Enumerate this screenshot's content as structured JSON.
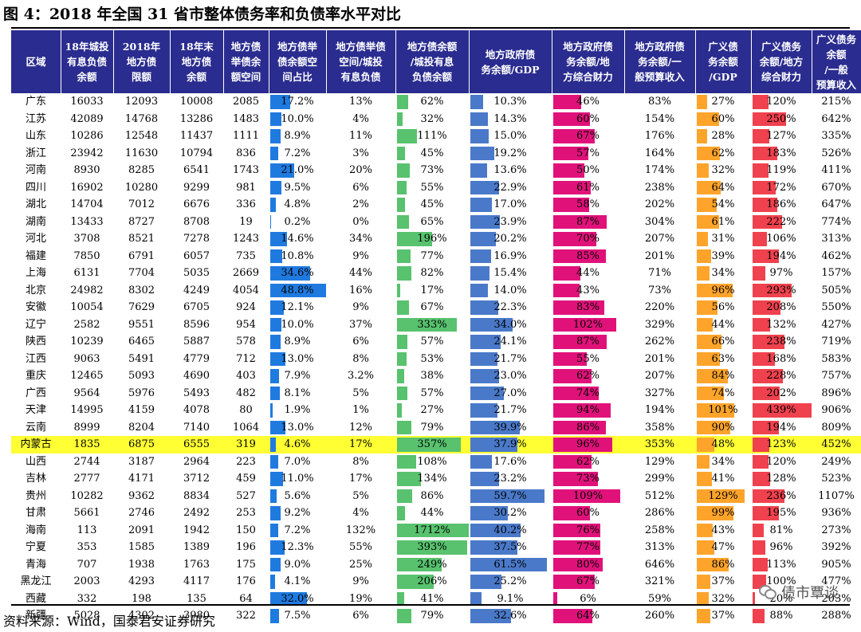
{
  "title": "图 4：2018 年全国 31 省市整体债务率和负债率水平对比",
  "source": "资料来源：Wind，国泰君安证券研究",
  "watermark": "债市覃谈",
  "colors": {
    "header_bg": "#2a2c8f",
    "highlight_row": "#ffff33",
    "bar_space_ratio": "#1f7ae0",
    "bar_debt_ratio": "#58c26e",
    "bar_gov_gdp": "#4a79c9",
    "bar_gov_fin": "#e0127a",
    "bar_broad_gdp": "#ffa42b",
    "bar_broad_fin": "#f0414e"
  },
  "table": {
    "headers": [
      "区域",
      "18年城投\n有息负债\n余额",
      "2018年\n地方债\n限额",
      "18年末\n地方债\n余额",
      "地方债\n举债余\n额空间",
      "地方债举\n债余额空\n间占比",
      "地方债举债\n空间/城投\n有息负债",
      "地方债余额\n/城投有息\n负债余额",
      "地方政府债\n务余额/GDP",
      "地方政府债\n务余额/地\n方综合财力",
      "地方政府债\n务余额/一\n般预算收入",
      "广义债\n务余额\n/GDP",
      "广义债务\n余额/地方\n综合财力",
      "广义债务余额\n/一般\n预算收入"
    ],
    "rows": [
      {
        "region": "广东",
        "c1": "16033",
        "c2": "12093",
        "c3": "10008",
        "c4": "2085",
        "space": "17.2%",
        "sp_city": "13%",
        "ratio": "62%",
        "gov_gdp": "10.3%",
        "gov_fin": "46%",
        "gov_rev": "83%",
        "bd_gdp": "27%",
        "bd_fin": "120%",
        "bd_rev": "215%",
        "space_v": 17.2,
        "ratio_v": 62,
        "gov_gdp_v": 10.3,
        "gov_fin_v": 46,
        "bd_gdp_v": 27,
        "bd_fin_v": 120
      },
      {
        "region": "江苏",
        "c1": "42089",
        "c2": "14768",
        "c3": "13286",
        "c4": "1483",
        "space": "10.0%",
        "sp_city": "4%",
        "ratio": "32%",
        "gov_gdp": "14.3%",
        "gov_fin": "60%",
        "gov_rev": "154%",
        "bd_gdp": "60%",
        "bd_fin": "250%",
        "bd_rev": "642%",
        "space_v": 10.0,
        "ratio_v": 32,
        "gov_gdp_v": 14.3,
        "gov_fin_v": 60,
        "bd_gdp_v": 60,
        "bd_fin_v": 250
      },
      {
        "region": "山东",
        "c1": "10286",
        "c2": "12548",
        "c3": "11437",
        "c4": "1111",
        "space": "8.9%",
        "sp_city": "11%",
        "ratio": "111%",
        "gov_gdp": "15.0%",
        "gov_fin": "67%",
        "gov_rev": "176%",
        "bd_gdp": "28%",
        "bd_fin": "127%",
        "bd_rev": "335%",
        "space_v": 8.9,
        "ratio_v": 111,
        "gov_gdp_v": 15.0,
        "gov_fin_v": 67,
        "bd_gdp_v": 28,
        "bd_fin_v": 127
      },
      {
        "region": "浙江",
        "c1": "23942",
        "c2": "11630",
        "c3": "10794",
        "c4": "836",
        "space": "7.2%",
        "sp_city": "3%",
        "ratio": "45%",
        "gov_gdp": "19.2%",
        "gov_fin": "57%",
        "gov_rev": "164%",
        "bd_gdp": "62%",
        "bd_fin": "183%",
        "bd_rev": "526%",
        "space_v": 7.2,
        "ratio_v": 45,
        "gov_gdp_v": 19.2,
        "gov_fin_v": 57,
        "bd_gdp_v": 62,
        "bd_fin_v": 183
      },
      {
        "region": "河南",
        "c1": "8930",
        "c2": "8285",
        "c3": "6541",
        "c4": "1743",
        "space": "21.0%",
        "sp_city": "20%",
        "ratio": "73%",
        "gov_gdp": "13.6%",
        "gov_fin": "50%",
        "gov_rev": "174%",
        "bd_gdp": "32%",
        "bd_fin": "119%",
        "bd_rev": "411%",
        "space_v": 21.0,
        "ratio_v": 73,
        "gov_gdp_v": 13.6,
        "gov_fin_v": 50,
        "bd_gdp_v": 32,
        "bd_fin_v": 119
      },
      {
        "region": "四川",
        "c1": "16902",
        "c2": "10280",
        "c3": "9299",
        "c4": "981",
        "space": "9.5%",
        "sp_city": "6%",
        "ratio": "55%",
        "gov_gdp": "22.9%",
        "gov_fin": "61%",
        "gov_rev": "238%",
        "bd_gdp": "64%",
        "bd_fin": "172%",
        "bd_rev": "670%",
        "space_v": 9.5,
        "ratio_v": 55,
        "gov_gdp_v": 22.9,
        "gov_fin_v": 61,
        "bd_gdp_v": 64,
        "bd_fin_v": 172
      },
      {
        "region": "湖北",
        "c1": "14704",
        "c2": "7012",
        "c3": "6676",
        "c4": "336",
        "space": "4.8%",
        "sp_city": "2%",
        "ratio": "45%",
        "gov_gdp": "17.0%",
        "gov_fin": "58%",
        "gov_rev": "202%",
        "bd_gdp": "54%",
        "bd_fin": "186%",
        "bd_rev": "647%",
        "space_v": 4.8,
        "ratio_v": 45,
        "gov_gdp_v": 17.0,
        "gov_fin_v": 58,
        "bd_gdp_v": 54,
        "bd_fin_v": 186
      },
      {
        "region": "湖南",
        "c1": "13433",
        "c2": "8727",
        "c3": "8708",
        "c4": "19",
        "space": "0.2%",
        "sp_city": "0%",
        "ratio": "65%",
        "gov_gdp": "23.9%",
        "gov_fin": "87%",
        "gov_rev": "304%",
        "bd_gdp": "61%",
        "bd_fin": "222%",
        "bd_rev": "774%",
        "space_v": 0.2,
        "ratio_v": 65,
        "gov_gdp_v": 23.9,
        "gov_fin_v": 87,
        "bd_gdp_v": 61,
        "bd_fin_v": 222
      },
      {
        "region": "河北",
        "c1": "3708",
        "c2": "8521",
        "c3": "7278",
        "c4": "1243",
        "space": "14.6%",
        "sp_city": "34%",
        "ratio": "196%",
        "gov_gdp": "20.2%",
        "gov_fin": "70%",
        "gov_rev": "207%",
        "bd_gdp": "31%",
        "bd_fin": "106%",
        "bd_rev": "313%",
        "space_v": 14.6,
        "ratio_v": 196,
        "gov_gdp_v": 20.2,
        "gov_fin_v": 70,
        "bd_gdp_v": 31,
        "bd_fin_v": 106
      },
      {
        "region": "福建",
        "c1": "7850",
        "c2": "6791",
        "c3": "6057",
        "c4": "735",
        "space": "10.8%",
        "sp_city": "9%",
        "ratio": "77%",
        "gov_gdp": "16.9%",
        "gov_fin": "85%",
        "gov_rev": "201%",
        "bd_gdp": "39%",
        "bd_fin": "194%",
        "bd_rev": "462%",
        "space_v": 10.8,
        "ratio_v": 77,
        "gov_gdp_v": 16.9,
        "gov_fin_v": 85,
        "bd_gdp_v": 39,
        "bd_fin_v": 194
      },
      {
        "region": "上海",
        "c1": "6131",
        "c2": "7704",
        "c3": "5035",
        "c4": "2669",
        "space": "34.6%",
        "sp_city": "44%",
        "ratio": "82%",
        "gov_gdp": "15.4%",
        "gov_fin": "44%",
        "gov_rev": "71%",
        "bd_gdp": "34%",
        "bd_fin": "97%",
        "bd_rev": "157%",
        "space_v": 34.6,
        "ratio_v": 82,
        "gov_gdp_v": 15.4,
        "gov_fin_v": 44,
        "bd_gdp_v": 34,
        "bd_fin_v": 97
      },
      {
        "region": "北京",
        "c1": "24982",
        "c2": "8302",
        "c3": "4249",
        "c4": "4054",
        "space": "48.8%",
        "sp_city": "16%",
        "ratio": "17%",
        "gov_gdp": "14.0%",
        "gov_fin": "43%",
        "gov_rev": "73%",
        "bd_gdp": "96%",
        "bd_fin": "293%",
        "bd_rev": "505%",
        "space_v": 48.8,
        "ratio_v": 17,
        "gov_gdp_v": 14.0,
        "gov_fin_v": 43,
        "bd_gdp_v": 96,
        "bd_fin_v": 293
      },
      {
        "region": "安徽",
        "c1": "10054",
        "c2": "7629",
        "c3": "6705",
        "c4": "924",
        "space": "12.1%",
        "sp_city": "9%",
        "ratio": "67%",
        "gov_gdp": "22.3%",
        "gov_fin": "83%",
        "gov_rev": "220%",
        "bd_gdp": "56%",
        "bd_fin": "208%",
        "bd_rev": "550%",
        "space_v": 12.1,
        "ratio_v": 67,
        "gov_gdp_v": 22.3,
        "gov_fin_v": 83,
        "bd_gdp_v": 56,
        "bd_fin_v": 208
      },
      {
        "region": "辽宁",
        "c1": "2582",
        "c2": "9551",
        "c3": "8596",
        "c4": "954",
        "space": "10.0%",
        "sp_city": "37%",
        "ratio": "333%",
        "gov_gdp": "34.0%",
        "gov_fin": "102%",
        "gov_rev": "329%",
        "bd_gdp": "44%",
        "bd_fin": "132%",
        "bd_rev": "427%",
        "space_v": 10.0,
        "ratio_v": 333,
        "gov_gdp_v": 34.0,
        "gov_fin_v": 102,
        "bd_gdp_v": 44,
        "bd_fin_v": 132
      },
      {
        "region": "陕西",
        "c1": "10239",
        "c2": "6465",
        "c3": "5887",
        "c4": "578",
        "space": "8.9%",
        "sp_city": "6%",
        "ratio": "57%",
        "gov_gdp": "24.1%",
        "gov_fin": "87%",
        "gov_rev": "262%",
        "bd_gdp": "66%",
        "bd_fin": "238%",
        "bd_rev": "719%",
        "space_v": 8.9,
        "ratio_v": 57,
        "gov_gdp_v": 24.1,
        "gov_fin_v": 87,
        "bd_gdp_v": 66,
        "bd_fin_v": 238
      },
      {
        "region": "江西",
        "c1": "9063",
        "c2": "5491",
        "c3": "4779",
        "c4": "712",
        "space": "13.0%",
        "sp_city": "8%",
        "ratio": "53%",
        "gov_gdp": "21.7%",
        "gov_fin": "55%",
        "gov_rev": "201%",
        "bd_gdp": "63%",
        "bd_fin": "168%",
        "bd_rev": "583%",
        "space_v": 13.0,
        "ratio_v": 53,
        "gov_gdp_v": 21.7,
        "gov_fin_v": 55,
        "bd_gdp_v": 63,
        "bd_fin_v": 168
      },
      {
        "region": "重庆",
        "c1": "12465",
        "c2": "5093",
        "c3": "4690",
        "c4": "403",
        "space": "7.9%",
        "sp_city": "3.2%",
        "ratio": "38%",
        "gov_gdp": "23.0%",
        "gov_fin": "62%",
        "gov_rev": "207%",
        "bd_gdp": "84%",
        "bd_fin": "228%",
        "bd_rev": "757%",
        "space_v": 7.9,
        "ratio_v": 38,
        "gov_gdp_v": 23.0,
        "gov_fin_v": 62,
        "bd_gdp_v": 84,
        "bd_fin_v": 228
      },
      {
        "region": "广西",
        "c1": "9564",
        "c2": "5976",
        "c3": "5493",
        "c4": "482",
        "space": "8.1%",
        "sp_city": "5%",
        "ratio": "57%",
        "gov_gdp": "27.0%",
        "gov_fin": "74%",
        "gov_rev": "327%",
        "bd_gdp": "74%",
        "bd_fin": "202%",
        "bd_rev": "896%",
        "space_v": 8.1,
        "ratio_v": 57,
        "gov_gdp_v": 27.0,
        "gov_fin_v": 74,
        "bd_gdp_v": 74,
        "bd_fin_v": 202
      },
      {
        "region": "天津",
        "c1": "14995",
        "c2": "4159",
        "c3": "4078",
        "c4": "80",
        "space": "1.9%",
        "sp_city": "1%",
        "ratio": "27%",
        "gov_gdp": "21.7%",
        "gov_fin": "94%",
        "gov_rev": "194%",
        "bd_gdp": "101%",
        "bd_fin": "439%",
        "bd_rev": "906%",
        "space_v": 1.9,
        "ratio_v": 27,
        "gov_gdp_v": 21.7,
        "gov_fin_v": 94,
        "bd_gdp_v": 101,
        "bd_fin_v": 439
      },
      {
        "region": "云南",
        "c1": "8999",
        "c2": "8204",
        "c3": "7140",
        "c4": "1064",
        "space": "13.0%",
        "sp_city": "12%",
        "ratio": "79%",
        "gov_gdp": "39.9%",
        "gov_fin": "86%",
        "gov_rev": "358%",
        "bd_gdp": "90%",
        "bd_fin": "194%",
        "bd_rev": "809%",
        "space_v": 13.0,
        "ratio_v": 79,
        "gov_gdp_v": 39.9,
        "gov_fin_v": 86,
        "bd_gdp_v": 90,
        "bd_fin_v": 194
      },
      {
        "region": "内蒙古",
        "c1": "1835",
        "c2": "6875",
        "c3": "6555",
        "c4": "319",
        "space": "4.6%",
        "sp_city": "17%",
        "ratio": "357%",
        "gov_gdp": "37.9%",
        "gov_fin": "96%",
        "gov_rev": "353%",
        "bd_gdp": "48%",
        "bd_fin": "123%",
        "bd_rev": "452%",
        "space_v": 4.6,
        "ratio_v": 357,
        "gov_gdp_v": 37.9,
        "gov_fin_v": 96,
        "bd_gdp_v": 48,
        "bd_fin_v": 123,
        "highlight": true
      },
      {
        "region": "山西",
        "c1": "2744",
        "c2": "3187",
        "c3": "2964",
        "c4": "223",
        "space": "7.0%",
        "sp_city": "8%",
        "ratio": "108%",
        "gov_gdp": "17.6%",
        "gov_fin": "62%",
        "gov_rev": "129%",
        "bd_gdp": "34%",
        "bd_fin": "120%",
        "bd_rev": "249%",
        "space_v": 7.0,
        "ratio_v": 108,
        "gov_gdp_v": 17.6,
        "gov_fin_v": 62,
        "bd_gdp_v": 34,
        "bd_fin_v": 120
      },
      {
        "region": "吉林",
        "c1": "2777",
        "c2": "4171",
        "c3": "3712",
        "c4": "459",
        "space": "11.0%",
        "sp_city": "17%",
        "ratio": "134%",
        "gov_gdp": "23.2%",
        "gov_fin": "73%",
        "gov_rev": "299%",
        "bd_gdp": "41%",
        "bd_fin": "128%",
        "bd_rev": "523%",
        "space_v": 11.0,
        "ratio_v": 134,
        "gov_gdp_v": 23.2,
        "gov_fin_v": 73,
        "bd_gdp_v": 41,
        "bd_fin_v": 128
      },
      {
        "region": "贵州",
        "c1": "10282",
        "c2": "9362",
        "c3": "8834",
        "c4": "527",
        "space": "5.6%",
        "sp_city": "5%",
        "ratio": "86%",
        "gov_gdp": "59.7%",
        "gov_fin": "109%",
        "gov_rev": "512%",
        "bd_gdp": "129%",
        "bd_fin": "236%",
        "bd_rev": "1107%",
        "space_v": 5.6,
        "ratio_v": 86,
        "gov_gdp_v": 59.7,
        "gov_fin_v": 109,
        "bd_gdp_v": 129,
        "bd_fin_v": 236
      },
      {
        "region": "甘肃",
        "c1": "5661",
        "c2": "2746",
        "c3": "2492",
        "c4": "253",
        "space": "9.2%",
        "sp_city": "4%",
        "ratio": "44%",
        "gov_gdp": "30.2%",
        "gov_fin": "60%",
        "gov_rev": "286%",
        "bd_gdp": "99%",
        "bd_fin": "195%",
        "bd_rev": "936%",
        "space_v": 9.2,
        "ratio_v": 44,
        "gov_gdp_v": 30.2,
        "gov_fin_v": 60,
        "bd_gdp_v": 99,
        "bd_fin_v": 195
      },
      {
        "region": "海南",
        "c1": "113",
        "c2": "2091",
        "c3": "1942",
        "c4": "150",
        "space": "7.2%",
        "sp_city": "132%",
        "ratio": "1712%",
        "gov_gdp": "40.2%",
        "gov_fin": "76%",
        "gov_rev": "258%",
        "bd_gdp": "43%",
        "bd_fin": "81%",
        "bd_rev": "273%",
        "space_v": 7.2,
        "ratio_v": 1712,
        "gov_gdp_v": 40.2,
        "gov_fin_v": 76,
        "bd_gdp_v": 43,
        "bd_fin_v": 81
      },
      {
        "region": "宁夏",
        "c1": "353",
        "c2": "1585",
        "c3": "1389",
        "c4": "196",
        "space": "12.3%",
        "sp_city": "55%",
        "ratio": "393%",
        "gov_gdp": "37.5%",
        "gov_fin": "77%",
        "gov_rev": "313%",
        "bd_gdp": "47%",
        "bd_fin": "96%",
        "bd_rev": "392%",
        "space_v": 12.3,
        "ratio_v": 393,
        "gov_gdp_v": 37.5,
        "gov_fin_v": 77,
        "bd_gdp_v": 47,
        "bd_fin_v": 96
      },
      {
        "region": "青海",
        "c1": "707",
        "c2": "1938",
        "c3": "1763",
        "c4": "175",
        "space": "9.0%",
        "sp_city": "25%",
        "ratio": "249%",
        "gov_gdp": "61.5%",
        "gov_fin": "80%",
        "gov_rev": "646%",
        "bd_gdp": "86%",
        "bd_fin": "113%",
        "bd_rev": "905%",
        "space_v": 9.0,
        "ratio_v": 249,
        "gov_gdp_v": 61.5,
        "gov_fin_v": 80,
        "bd_gdp_v": 86,
        "bd_fin_v": 113
      },
      {
        "region": "黑龙江",
        "c1": "2003",
        "c2": "4293",
        "c3": "4117",
        "c4": "176",
        "space": "4.1%",
        "sp_city": "9%",
        "ratio": "206%",
        "gov_gdp": "25.2%",
        "gov_fin": "67%",
        "gov_rev": "321%",
        "bd_gdp": "37%",
        "bd_fin": "100%",
        "bd_rev": "477%",
        "space_v": 4.1,
        "ratio_v": 206,
        "gov_gdp_v": 25.2,
        "gov_fin_v": 67,
        "bd_gdp_v": 37,
        "bd_fin_v": 100
      },
      {
        "region": "西藏",
        "c1": "332",
        "c2": "198",
        "c3": "135",
        "c4": "64",
        "space": "32.0%",
        "sp_city": "19%",
        "ratio": "41%",
        "gov_gdp": "9.1%",
        "gov_fin": "6%",
        "gov_rev": "59%",
        "bd_gdp": "32%",
        "bd_fin": "20%",
        "bd_rev": "203%",
        "space_v": 32.0,
        "ratio_v": 41,
        "gov_gdp_v": 9.1,
        "gov_fin_v": 6,
        "bd_gdp_v": 32,
        "bd_fin_v": 20
      },
      {
        "region": "新疆",
        "c1": "5028",
        "c2": "4302",
        "c3": "3980",
        "c4": "322",
        "space": "7.5%",
        "sp_city": "6%",
        "ratio": "79%",
        "gov_gdp": "32.6%",
        "gov_fin": "64%",
        "gov_rev": "260%",
        "bd_gdp": "37%",
        "bd_fin": "88%",
        "bd_rev": "288%",
        "space_v": 7.5,
        "ratio_v": 79,
        "gov_gdp_v": 32.6,
        "gov_fin_v": 64,
        "bd_gdp_v": 37,
        "bd_fin_v": 88
      }
    ]
  }
}
